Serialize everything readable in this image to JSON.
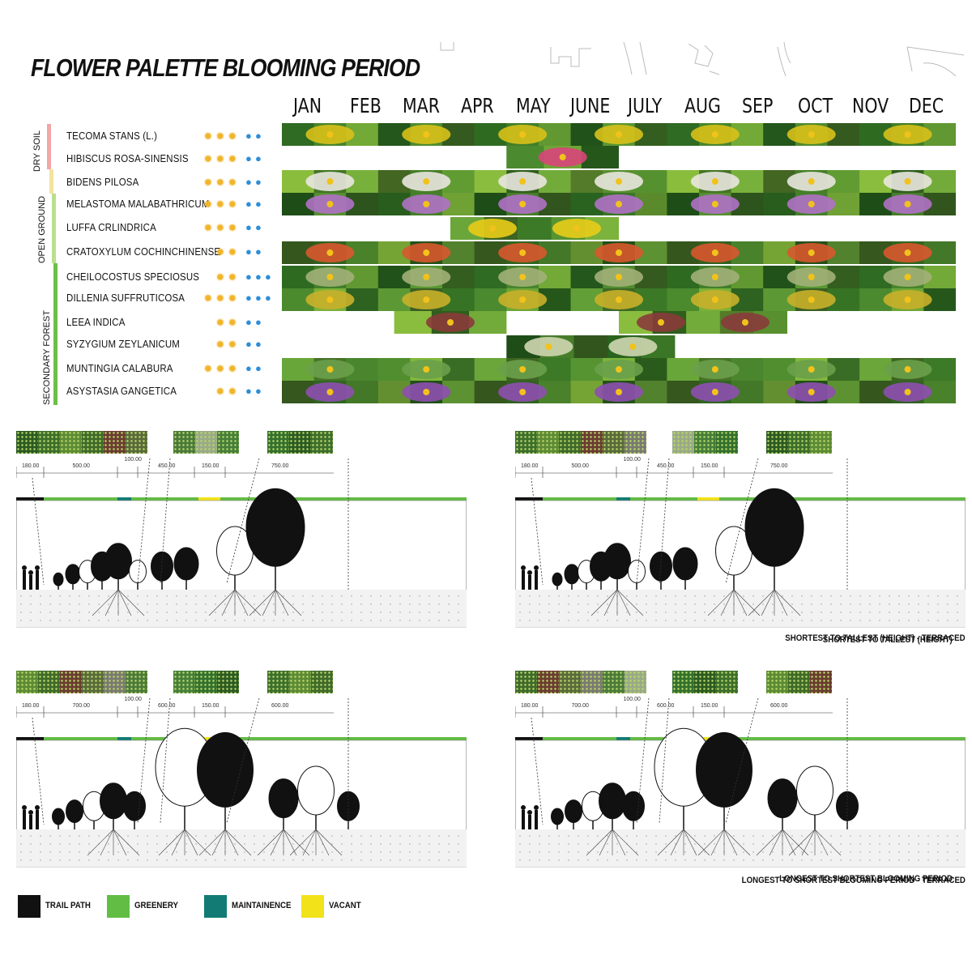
{
  "title": "FLOWER PALETTE BLOOMING PERIOD",
  "months": [
    "JAN",
    "FEB",
    "MAR",
    "APR",
    "MAY",
    "JUNE",
    "JULY",
    "AUG",
    "SEP",
    "OCT",
    "NOV",
    "DEC"
  ],
  "zones": [
    {
      "label": "DRY SOIL",
      "color": "#f3a6a6"
    },
    {
      "label": "OPEN GROUND",
      "color": "#9bd36b"
    },
    {
      "label": "SECONDARY FOREST",
      "color": "#56b040"
    }
  ],
  "plants": [
    {
      "name": "TECOMA STANS (L.)",
      "sun": 3,
      "water": 2,
      "bloom": [
        [
          1,
          12
        ]
      ],
      "color": "#d8c11a"
    },
    {
      "name": "HIBISCUS ROSA-SINENSIS",
      "sun": 3,
      "water": 2,
      "bloom": [
        [
          5,
          6
        ]
      ],
      "color": "#d9457a"
    },
    {
      "name": "BIDENS PILOSA",
      "sun": 3,
      "water": 2,
      "bloom": [
        [
          1,
          12
        ]
      ],
      "color": "#e9e7df"
    },
    {
      "name": "MELASTOMA MALABATHRICUM",
      "sun": 3,
      "water": 2,
      "bloom": [
        [
          1,
          12
        ]
      ],
      "color": "#b071c6"
    },
    {
      "name": "LUFFA CRLINDRICA",
      "sun": 3,
      "water": 2,
      "bloom": [
        [
          4,
          6
        ]
      ],
      "color": "#e9cc18"
    },
    {
      "name": "CRATOXYLUM COCHINCHINENSE",
      "sun": 2,
      "water": 2,
      "bloom": [
        [
          1,
          12
        ]
      ],
      "color": "#d8582e"
    },
    {
      "name": "CHEILOCOSTUS SPECIOSUS",
      "sun": 2,
      "water": 3,
      "bloom": [
        [
          1,
          12
        ]
      ],
      "color": "#a2b078"
    },
    {
      "name": "DILLENIA SUFFRUTICOSA",
      "sun": 3,
      "water": 3,
      "bloom": [
        [
          1,
          12
        ]
      ],
      "color": "#c9b02a"
    },
    {
      "name": "LEEA INDICA",
      "sun": 2,
      "water": 2,
      "bloom": [
        [
          3,
          4
        ],
        [
          7,
          9
        ]
      ],
      "color": "#8a3b3b"
    },
    {
      "name": "SYZYGIUM ZEYLANICUM",
      "sun": 2,
      "water": 2,
      "bloom": [
        [
          5,
          7
        ]
      ],
      "color": "#cfd6b0"
    },
    {
      "name": "MUNTINGIA CALABURA",
      "sun": 3,
      "water": 2,
      "bloom": [
        [
          1,
          12
        ]
      ],
      "color": "#6aa04a"
    },
    {
      "name": "ASYSTASIA GANGETICA",
      "sun": 2,
      "water": 2,
      "bloom": [
        [
          1,
          12
        ]
      ],
      "color": "#8e4fb0"
    }
  ],
  "sections": [
    {
      "caption": "SHORTEST TO TALLEST (HEIGHT)",
      "dims": [
        "180.00",
        "500.00",
        "100.00",
        "450.00",
        "150.00",
        "750.00"
      ]
    },
    {
      "caption": "SHORTEST TO TALLEST (HEIGHT) - TERRACED",
      "dims": [
        "180.00",
        "500.00",
        "100.00",
        "450.00",
        "150.00",
        "750.00"
      ]
    },
    {
      "caption": "LONGEST TO SHORTEST BLOOMING PERIOD",
      "dims": [
        "180.00",
        "700.00",
        "100.00",
        "600.00",
        "150.00",
        "600.00"
      ]
    },
    {
      "caption": "LONGEST TO SHORTEST BLOOMING PERIOD - TERRACED",
      "dims": [
        "180.00",
        "700.00",
        "100.00",
        "600.00",
        "150.00",
        "600.00"
      ]
    }
  ],
  "legend": [
    {
      "label": "TRAIL PATH",
      "color": "#111111"
    },
    {
      "label": "GREENERY",
      "color": "#62bd44"
    },
    {
      "label": "MAINTAINENCE",
      "color": "#127c74"
    },
    {
      "label": "VACANT",
      "color": "#f2e21a"
    }
  ],
  "icons": {
    "sun": "sun-icon",
    "water": "water-drop-icon"
  }
}
